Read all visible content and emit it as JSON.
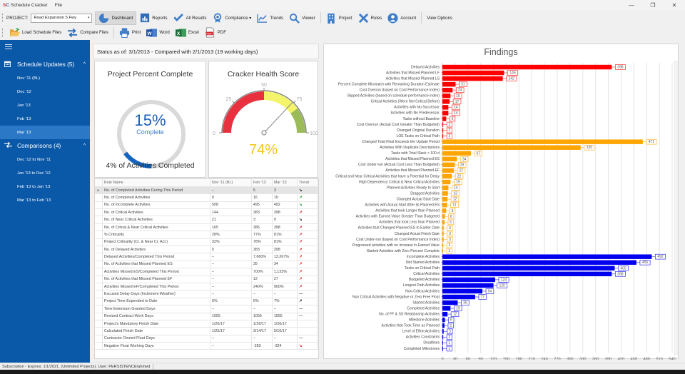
{
  "window": {
    "logo": "SC",
    "app_title": "Schedule Cracker",
    "menu_file": "File",
    "controls": [
      "—",
      "❐",
      "✕"
    ]
  },
  "toolbar": {
    "project_label": "PROJECT:",
    "project_value": "Road Expansion 5 Fwy",
    "buttons": [
      {
        "label": "Dashboard",
        "icon": "pie-chart-icon",
        "active": true
      },
      {
        "label": "Reports",
        "icon": "bar-report-icon"
      },
      {
        "label": "All Results",
        "icon": "double-check-icon"
      },
      {
        "label": "Compliance ▾",
        "icon": "award-icon"
      },
      {
        "label": "Trends",
        "icon": "trend-line-icon"
      },
      {
        "label": "Viewer",
        "icon": "magnifier-icon"
      },
      {
        "label": "Project",
        "icon": "building-icon"
      },
      {
        "label": "Rules",
        "icon": "tools-icon"
      },
      {
        "label": "Account",
        "icon": "user-icon"
      },
      {
        "label": "View Options",
        "icon": ""
      }
    ],
    "row2": [
      {
        "label": "Load Schedule Files",
        "icon": "folder-open-icon"
      },
      {
        "label": "Compare Files",
        "icon": "compare-arrows-icon"
      },
      {
        "label": "Print",
        "icon": "printer-icon"
      },
      {
        "label": "Word",
        "icon": "word-icon"
      },
      {
        "label": "Excel",
        "icon": "excel-icon"
      },
      {
        "label": "PDF",
        "icon": "pdf-icon"
      }
    ]
  },
  "sidebar": {
    "schedule_updates": {
      "label": "Schedule Updates (5)",
      "items": [
        "Nov '11 (BL)",
        "Dec '12",
        "Jan '13",
        "Feb '13",
        "Mar '13"
      ],
      "selected": "Mar '13"
    },
    "comparisons": {
      "label": "Comparisons (4)",
      "items": [
        "Dec '12 to Nov '11",
        "Jan '13 to Dec '12",
        "Feb '13 to Jan '13",
        "Mar '13 to Feb '13"
      ]
    }
  },
  "status": {
    "text": "Status as of: 3/1/2013 - Compared with  2/1/2013 (19 working days)"
  },
  "percent_complete": {
    "title": "Project Percent Complete",
    "value_text": "15%",
    "value": 15,
    "sub": "Complete",
    "footer": "4% of Activities Completed",
    "color": "#1565c0"
  },
  "health": {
    "title": "Cracker Health Score",
    "value_text": "74%",
    "value": 74,
    "ticks": [
      "0",
      "25",
      "50",
      "75",
      "100"
    ],
    "colors": {
      "red": "#e8303f",
      "yellow": "#f4f46a",
      "green": "#9bbb59",
      "value": "#f5c518"
    }
  },
  "grid": {
    "columns": [
      "Rule Name",
      "Nov '11 (BL)",
      "Feb '13",
      "Mar '13",
      "Trend"
    ],
    "rows": [
      [
        "No. of Completed Activities During This Period",
        "–",
        "5",
        "3",
        "down-black"
      ],
      [
        "No. of Completed Activities",
        "0",
        "16",
        "19",
        "up-green"
      ],
      [
        "No. of Incomplete Activities",
        "508",
        "495",
        "492",
        "down-green"
      ],
      [
        "No. of Critical Activities",
        "144",
        "383",
        "398",
        "up-red"
      ],
      [
        "No. of Near Critical Activities",
        "21",
        "3",
        "0",
        "down-black"
      ],
      [
        "No. of Critcal & Near Critical Activities",
        "165",
        "386",
        "398",
        "up-red"
      ],
      [
        "% Criticality",
        "28%",
        "77%",
        "81%",
        "up-red"
      ],
      [
        "Project Criticality (Cr. & Near Cr. Act.)",
        "32%",
        "78%",
        "81%",
        "up-red"
      ],
      [
        "No. of Delayed Activities",
        "0",
        "383",
        "398",
        "up-red"
      ],
      [
        "Delayed Activities/Completed This Period",
        "–",
        "7,660%",
        "13,267%",
        "up-red"
      ],
      [
        "No. of Activities that Missed Planned ES",
        "–",
        "35",
        "34",
        "up-red"
      ],
      [
        "Activities Missed ES/Completed This Period",
        "–",
        "700%",
        "1,133%",
        "up-red"
      ],
      [
        "No. of Activities that Missed Planned EF",
        "–",
        "12",
        "27",
        "up-red"
      ],
      [
        "Activities Missed EF/Completed This Period",
        "–",
        "240%",
        "900%",
        "up-red"
      ],
      [
        "Excused Delay Days (Inclement Weather)",
        "–",
        "–",
        "–",
        "flat"
      ],
      [
        "Project Time Expended to Date",
        "0%",
        "6%",
        "7%",
        "up-black"
      ],
      [
        "Time Extension Granted Days",
        "–",
        "–",
        "–",
        "flat"
      ],
      [
        "Revised Contract Work Days",
        "1055",
        "1055",
        "1055",
        "flat"
      ],
      [
        "Project's Mandatory Finish Date",
        "1/26/17",
        "1/26/17",
        "1/26/17",
        ""
      ],
      [
        "Calculated Finish Date",
        "1/25/17",
        "3/14/17",
        "5/10/17",
        ""
      ],
      [
        "Contractor Owned Float Days",
        "–",
        "–",
        "–",
        "flat"
      ],
      [
        "Negative Float Working Days",
        "–",
        "-283",
        "-324",
        "down-red"
      ]
    ]
  },
  "chart_data": {
    "type": "bar",
    "orientation": "horizontal",
    "title": "Findings",
    "xlim": [
      0,
      540
    ],
    "xticks": [
      "0",
      "30",
      "60",
      "90",
      "120",
      "150",
      "180",
      "210",
      "240",
      "270",
      "300",
      "330",
      "360",
      "390",
      "420",
      "450",
      "480",
      "510",
      "540"
    ],
    "grid": true,
    "series": [
      {
        "name": "red",
        "color": "#ff0000",
        "categories": [
          "Delayed Activities",
          "Activities that Missed Planned LF",
          "Activities that Missed Planned LS",
          "Percent Complete Mismatch with Remaining Duration Estimate",
          "Cost Overrun (based on Cost Performance Index)",
          "Slipped Activities (based on schedule performance index)",
          "Critical Activities (Were Not Critical Before)",
          "Activities with No Successor",
          "Activities with No Predecessor",
          "Tasks without Baseline",
          "Cost Overrun (Actual Cost Greater Than Budgeted)",
          "Changed Original Duration",
          "LOE Tasks on Critical Path"
        ],
        "values": [
          398,
          145,
          142,
          31,
          24,
          19,
          17,
          14,
          14,
          9,
          2,
          2,
          2
        ]
      },
      {
        "name": "orange",
        "color": "#ffa500",
        "categories": [
          "Changed Total Float Exceeds the Update Period",
          "Activities With Duplicate Descriptions",
          "Tasks with Total Slack > 100 d",
          "Activities that Missed Planned ES",
          "Cost Under-run (Actual Cost Less Than Budgeted)",
          "Activities that Missed Planned EF",
          "Critical and Near Critical Activities that have a Potential for Delay",
          "High Dependency Critical & Near Critical Activities",
          "Planned Activities Ready to Start",
          "Dragged Activities",
          "Changed Actual Start Date",
          "Activities with Actual Start After its Planned ES",
          "Activities that took Longer than Planned",
          "Activities with Earned Value Greater Than Budgeted",
          "Activities that took Less than Planned",
          "Activities that Changed Planned ES to Earlier Date",
          "Changed Actual Finish Date",
          "Cost Under-run (based on Cost Performance Index)",
          "Progressed activities with no increase in Earned Value",
          "Started Activities with Zero Percent Complete"
        ],
        "values": [
          471,
          325,
          67,
          34,
          29,
          27,
          22,
          19,
          14,
          13,
          12,
          11,
          9,
          6,
          5,
          3,
          3,
          3,
          2,
          1
        ]
      },
      {
        "name": "blue",
        "color": "#0000ee",
        "categories": [
          "Incomplete Activities",
          "Not Started Activities",
          "Tasks on Critical Path",
          "Critical Activities",
          "Budgeted Activities",
          "Longest Path Activities",
          "Non-Critical Activities",
          "Non Critical Activities with Negative or Zero Free Float",
          "Started Activities",
          "Completed Activities",
          "No. of FF & SS Relationship Activities",
          "Milestone Activities",
          "Activities that Took Time as Planned",
          "Level of Effort Activities",
          "Activities Constraints",
          "Deadlines",
          "Completed Milestones"
        ],
        "values": [
          492,
          456,
          405,
          398,
          124,
          120,
          94,
          77,
          36,
          19,
          12,
          6,
          5,
          3,
          2,
          1,
          1
        ]
      }
    ]
  },
  "statusbar": {
    "text": "Subscription - Expires: 1/1/2021. (Unlimited Projects). User: PERSISTENCE\\ahmed"
  }
}
